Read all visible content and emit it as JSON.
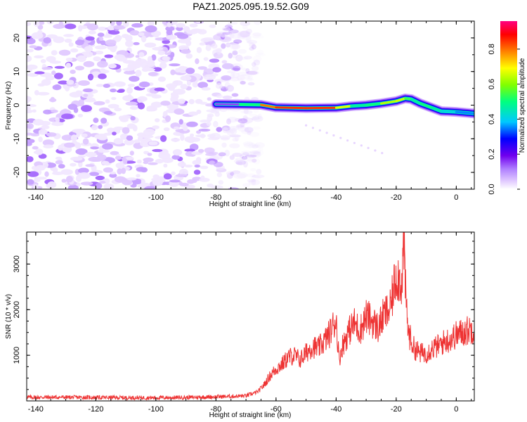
{
  "title": "PAZ1.2025.095.19.52.G09",
  "colorbar": {
    "label": "Normalized spectral amplitude",
    "ticks": [
      "0.0",
      "0.2",
      "0.4",
      "0.6",
      "0.8"
    ]
  },
  "chart_data": [
    {
      "type": "heatmap",
      "xlabel": "Height of straight line (km)",
      "ylabel": "Frequency (Hz)",
      "xlim": [
        -143,
        6
      ],
      "ylim": [
        -25,
        25
      ],
      "xticks": [
        "-140",
        "-120",
        "-100",
        "-80",
        "-60",
        "-40",
        "-20",
        "0"
      ],
      "yticks": [
        "20",
        "10",
        "0",
        "-10",
        "-20"
      ],
      "colormap": [
        "#ffffff",
        "#e0c8ff",
        "#b080ff",
        "#7000ee",
        "#0000ff",
        "#00c8ff",
        "#00ff80",
        "#b0ff00",
        "#ffff00",
        "#ff8000",
        "#ff0000",
        "#ff0080"
      ],
      "noise_region_x": [
        -143,
        -65
      ],
      "signal_ridge": {
        "x": [
          -80,
          -72,
          -65,
          -60,
          -50,
          -40,
          -35,
          -30,
          -25,
          -20,
          -17,
          -15,
          -12,
          -8,
          -5,
          0,
          6
        ],
        "frequency": [
          0.3,
          0.2,
          0.1,
          -0.7,
          -0.9,
          -0.8,
          -0.3,
          0.0,
          0.5,
          1.2,
          2.0,
          1.8,
          0.5,
          -0.8,
          -1.8,
          -2.0,
          -2.5
        ],
        "amplitude": [
          0.15,
          0.3,
          0.8,
          0.85,
          0.9,
          0.85,
          0.55,
          0.5,
          0.6,
          0.7,
          0.65,
          0.5,
          0.55,
          0.55,
          0.5,
          0.45,
          0.4
        ]
      }
    },
    {
      "type": "line",
      "xlabel": "Height of straight line (km)",
      "ylabel": "SNR (10 * v/v)",
      "xlim": [
        -143,
        6
      ],
      "ylim": [
        0,
        3700
      ],
      "xticks": [
        "-140",
        "-120",
        "-100",
        "-80",
        "-60",
        "-40",
        "-20",
        "0"
      ],
      "yticks": [
        "1000",
        "2000",
        "3000"
      ],
      "color": "#ee3333",
      "series": [
        {
          "x": [
            -143,
            -130,
            -120,
            -110,
            -100,
            -90,
            -80,
            -70,
            -66,
            -64,
            -62,
            -60,
            -58,
            -56,
            -54,
            -52,
            -50,
            -48,
            -46,
            -44,
            -42,
            -40,
            -39,
            -38,
            -36,
            -34,
            -32,
            -30,
            -28,
            -26,
            -24,
            -22,
            -20,
            -18,
            -17.5,
            -17,
            -16,
            -14,
            -12,
            -10,
            -8,
            -6,
            -4,
            -2,
            0,
            2,
            4,
            6
          ],
          "values": [
            80,
            80,
            75,
            70,
            70,
            75,
            90,
            110,
            200,
            350,
            550,
            700,
            800,
            950,
            1000,
            900,
            1050,
            1200,
            1150,
            1300,
            1500,
            1800,
            900,
            1200,
            1500,
            1700,
            1550,
            1850,
            1750,
            1600,
            1900,
            2000,
            2800,
            2600,
            3650,
            2500,
            1500,
            1150,
            1050,
            1050,
            1150,
            1200,
            1300,
            1350,
            1450,
            1500,
            1550,
            1600
          ]
        }
      ]
    }
  ]
}
